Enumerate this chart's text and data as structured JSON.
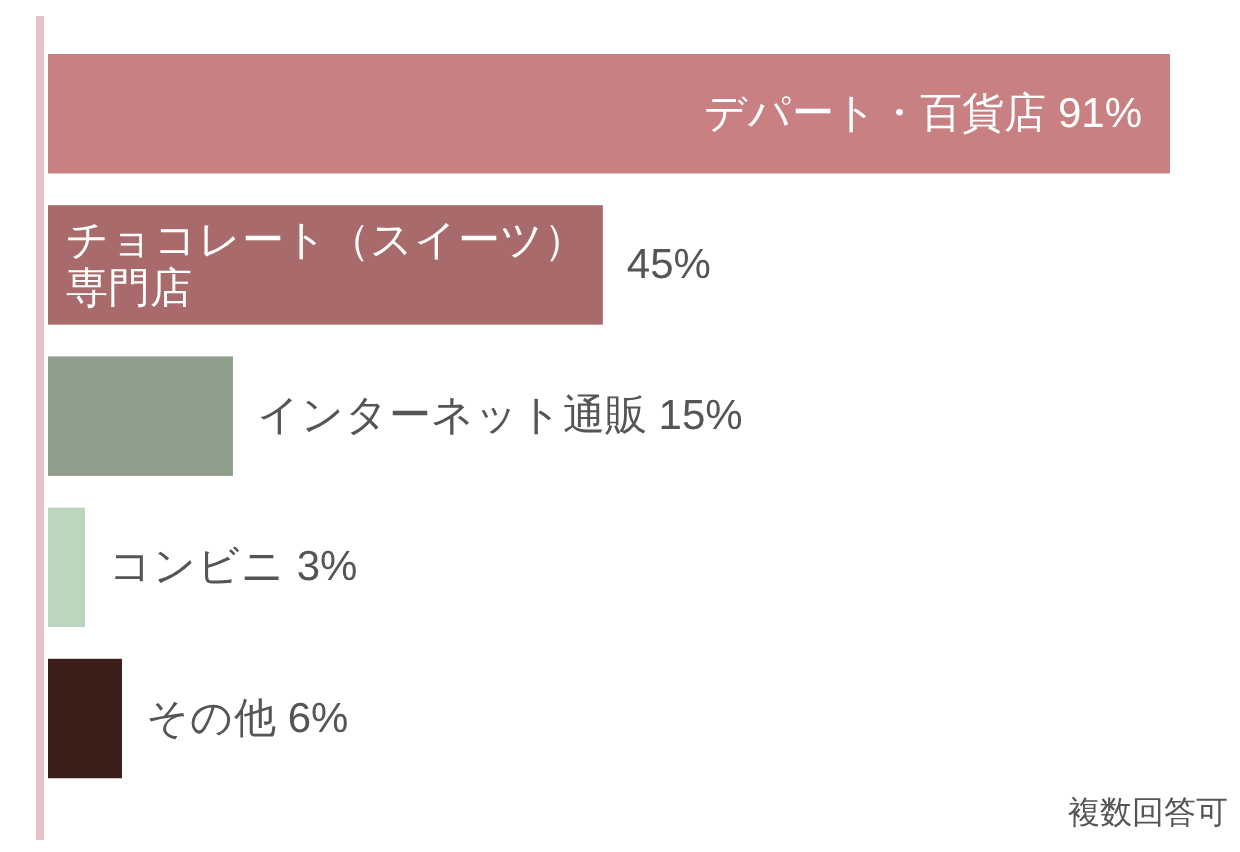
{
  "chart_data": {
    "type": "bar",
    "orientation": "horizontal",
    "categories": [
      "デパート・百貨店",
      "チョコレート（スイーツ）専門店",
      "インターネット通販",
      "コンビニ",
      "その他"
    ],
    "values": [
      91,
      45,
      15,
      3,
      6
    ],
    "colors": [
      "#c98083",
      "#a86a6a",
      "#8f9e8a",
      "#bcd5bc",
      "#3d1f1a"
    ],
    "value_labels": [
      "91%",
      "45%",
      "15%",
      "3%",
      "6%"
    ],
    "annotations": [
      "複数回答可"
    ]
  }
}
